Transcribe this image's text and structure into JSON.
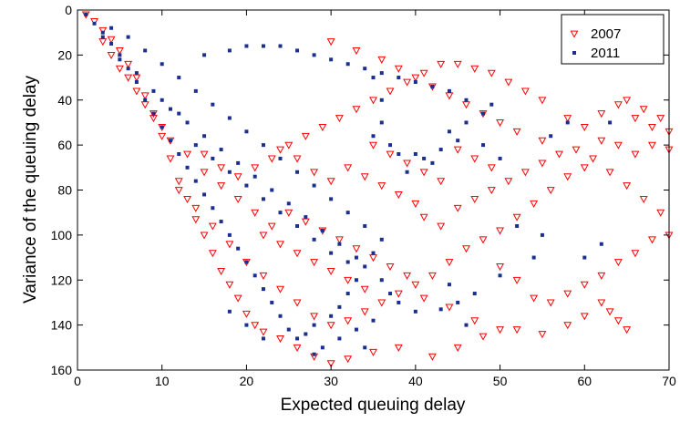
{
  "chart_data": {
    "type": "scatter",
    "xlabel": "Expected queuing delay",
    "ylabel": "Variance of the queuing delay",
    "xlim": [
      0,
      70
    ],
    "ylim": [
      0,
      160
    ],
    "y_axis_inverted": true,
    "x_ticks": [
      "0",
      "10",
      "20",
      "30",
      "40",
      "50",
      "60",
      "70"
    ],
    "y_ticks": [
      "0",
      "20",
      "40",
      "60",
      "80",
      "100",
      "120",
      "140",
      "160"
    ],
    "legend_position": "top-right",
    "grid": false,
    "series": [
      {
        "name": "2007",
        "marker": "triangle-down-open",
        "color": "#ff0000",
        "points": [
          [
            1,
            2
          ],
          [
            2,
            5
          ],
          [
            3,
            9
          ],
          [
            4,
            13
          ],
          [
            5,
            18
          ],
          [
            6,
            24
          ],
          [
            7,
            30
          ],
          [
            8,
            38
          ],
          [
            9,
            48
          ],
          [
            10,
            56
          ],
          [
            11,
            66
          ],
          [
            12,
            76
          ],
          [
            13,
            84
          ],
          [
            14,
            93
          ],
          [
            15,
            100
          ],
          [
            16,
            108
          ],
          [
            17,
            116
          ],
          [
            18,
            122
          ],
          [
            19,
            128
          ],
          [
            20,
            135
          ],
          [
            21,
            140
          ],
          [
            22,
            143
          ],
          [
            24,
            146
          ],
          [
            26,
            150
          ],
          [
            28,
            154
          ],
          [
            30,
            157
          ],
          [
            32,
            155
          ],
          [
            35,
            152
          ],
          [
            38,
            150
          ],
          [
            42,
            154
          ],
          [
            45,
            150
          ],
          [
            48,
            145
          ],
          [
            52,
            142
          ],
          [
            30,
            14
          ],
          [
            33,
            18
          ],
          [
            36,
            22
          ],
          [
            38,
            26
          ],
          [
            40,
            30
          ],
          [
            42,
            34
          ],
          [
            44,
            38
          ],
          [
            46,
            42
          ],
          [
            48,
            46
          ],
          [
            50,
            50
          ],
          [
            52,
            54
          ],
          [
            55,
            58
          ],
          [
            58,
            48
          ],
          [
            60,
            52
          ],
          [
            62,
            46
          ],
          [
            64,
            42
          ],
          [
            66,
            48
          ],
          [
            68,
            52
          ],
          [
            70,
            54
          ],
          [
            70,
            62
          ],
          [
            68,
            60
          ],
          [
            66,
            64
          ],
          [
            64,
            60
          ],
          [
            62,
            58
          ],
          [
            60,
            70
          ],
          [
            58,
            74
          ],
          [
            56,
            80
          ],
          [
            54,
            86
          ],
          [
            52,
            92
          ],
          [
            50,
            98
          ],
          [
            48,
            102
          ],
          [
            46,
            106
          ],
          [
            44,
            112
          ],
          [
            42,
            118
          ],
          [
            40,
            122
          ],
          [
            38,
            126
          ],
          [
            36,
            130
          ],
          [
            34,
            134
          ],
          [
            32,
            138
          ],
          [
            30,
            140
          ],
          [
            28,
            136
          ],
          [
            26,
            130
          ],
          [
            24,
            124
          ],
          [
            22,
            118
          ],
          [
            20,
            112
          ],
          [
            18,
            104
          ],
          [
            16,
            96
          ],
          [
            14,
            88
          ],
          [
            12,
            80
          ],
          [
            25,
            90
          ],
          [
            27,
            94
          ],
          [
            29,
            98
          ],
          [
            31,
            102
          ],
          [
            33,
            106
          ],
          [
            35,
            110
          ],
          [
            37,
            114
          ],
          [
            39,
            118
          ],
          [
            41,
            92
          ],
          [
            43,
            96
          ],
          [
            45,
            88
          ],
          [
            47,
            84
          ],
          [
            49,
            80
          ],
          [
            51,
            76
          ],
          [
            53,
            72
          ],
          [
            55,
            68
          ],
          [
            57,
            64
          ],
          [
            59,
            62
          ],
          [
            61,
            66
          ],
          [
            63,
            72
          ],
          [
            65,
            78
          ],
          [
            67,
            84
          ],
          [
            69,
            90
          ],
          [
            70,
            100
          ],
          [
            68,
            102
          ],
          [
            66,
            108
          ],
          [
            64,
            112
          ],
          [
            62,
            118
          ],
          [
            60,
            122
          ],
          [
            58,
            126
          ],
          [
            56,
            130
          ],
          [
            54,
            128
          ],
          [
            52,
            120
          ],
          [
            50,
            114
          ],
          [
            62,
            130
          ],
          [
            63,
            134
          ],
          [
            64,
            138
          ],
          [
            65,
            142
          ],
          [
            60,
            136
          ],
          [
            58,
            140
          ],
          [
            55,
            144
          ],
          [
            50,
            142
          ],
          [
            47,
            138
          ],
          [
            44,
            132
          ],
          [
            41,
            128
          ],
          [
            35,
            60
          ],
          [
            37,
            64
          ],
          [
            39,
            68
          ],
          [
            41,
            72
          ],
          [
            43,
            76
          ],
          [
            45,
            62
          ],
          [
            47,
            66
          ],
          [
            49,
            70
          ],
          [
            32,
            70
          ],
          [
            34,
            74
          ],
          [
            36,
            78
          ],
          [
            38,
            82
          ],
          [
            40,
            86
          ],
          [
            28,
            72
          ],
          [
            30,
            76
          ],
          [
            26,
            66
          ],
          [
            24,
            62
          ],
          [
            22,
            100
          ],
          [
            24,
            104
          ],
          [
            26,
            108
          ],
          [
            28,
            112
          ],
          [
            30,
            116
          ],
          [
            32,
            120
          ],
          [
            34,
            124
          ],
          [
            15,
            72
          ],
          [
            17,
            78
          ],
          [
            19,
            84
          ],
          [
            21,
            90
          ],
          [
            23,
            96
          ],
          [
            10,
            52
          ],
          [
            11,
            58
          ],
          [
            13,
            64
          ],
          [
            8,
            42
          ],
          [
            6,
            30
          ],
          [
            5,
            26
          ],
          [
            7,
            36
          ],
          [
            9,
            46
          ],
          [
            3,
            14
          ],
          [
            4,
            20
          ],
          [
            65,
            40
          ],
          [
            67,
            44
          ],
          [
            69,
            48
          ],
          [
            55,
            40
          ],
          [
            53,
            36
          ],
          [
            51,
            32
          ],
          [
            49,
            28
          ],
          [
            47,
            26
          ],
          [
            45,
            24
          ],
          [
            43,
            24
          ],
          [
            41,
            28
          ],
          [
            39,
            32
          ],
          [
            37,
            36
          ],
          [
            35,
            40
          ],
          [
            33,
            44
          ],
          [
            31,
            48
          ],
          [
            29,
            52
          ],
          [
            27,
            56
          ],
          [
            25,
            60
          ],
          [
            23,
            66
          ],
          [
            21,
            70
          ],
          [
            19,
            74
          ],
          [
            17,
            70
          ],
          [
            15,
            64
          ]
        ]
      },
      {
        "name": "2011",
        "marker": "square",
        "color": "#1a2f8f",
        "points": [
          [
            1,
            2
          ],
          [
            2,
            6
          ],
          [
            3,
            10
          ],
          [
            4,
            15
          ],
          [
            5,
            20
          ],
          [
            6,
            26
          ],
          [
            7,
            32
          ],
          [
            8,
            40
          ],
          [
            9,
            46
          ],
          [
            10,
            52
          ],
          [
            11,
            58
          ],
          [
            12,
            64
          ],
          [
            13,
            70
          ],
          [
            14,
            76
          ],
          [
            15,
            82
          ],
          [
            16,
            88
          ],
          [
            17,
            94
          ],
          [
            18,
            100
          ],
          [
            19,
            106
          ],
          [
            20,
            112
          ],
          [
            21,
            118
          ],
          [
            22,
            124
          ],
          [
            23,
            130
          ],
          [
            24,
            136
          ],
          [
            25,
            142
          ],
          [
            22,
            146
          ],
          [
            20,
            140
          ],
          [
            18,
            134
          ],
          [
            26,
            146
          ],
          [
            27,
            144
          ],
          [
            28,
            140
          ],
          [
            30,
            136
          ],
          [
            31,
            132
          ],
          [
            32,
            126
          ],
          [
            33,
            120
          ],
          [
            34,
            114
          ],
          [
            35,
            108
          ],
          [
            36,
            102
          ],
          [
            34,
            96
          ],
          [
            32,
            90
          ],
          [
            30,
            84
          ],
          [
            28,
            78
          ],
          [
            26,
            72
          ],
          [
            24,
            66
          ],
          [
            22,
            60
          ],
          [
            20,
            54
          ],
          [
            18,
            48
          ],
          [
            16,
            42
          ],
          [
            14,
            36
          ],
          [
            12,
            30
          ],
          [
            10,
            24
          ],
          [
            8,
            18
          ],
          [
            6,
            12
          ],
          [
            4,
            8
          ],
          [
            15,
            20
          ],
          [
            18,
            18
          ],
          [
            20,
            16
          ],
          [
            22,
            16
          ],
          [
            24,
            16
          ],
          [
            26,
            18
          ],
          [
            28,
            20
          ],
          [
            30,
            22
          ],
          [
            32,
            24
          ],
          [
            34,
            26
          ],
          [
            35,
            30
          ],
          [
            36,
            40
          ],
          [
            36,
            50
          ],
          [
            35,
            56
          ],
          [
            37,
            60
          ],
          [
            38,
            64
          ],
          [
            40,
            64
          ],
          [
            41,
            66
          ],
          [
            42,
            68
          ],
          [
            39,
            72
          ],
          [
            43,
            62
          ],
          [
            45,
            58
          ],
          [
            44,
            54
          ],
          [
            46,
            50
          ],
          [
            48,
            46
          ],
          [
            49,
            42
          ],
          [
            36,
            120
          ],
          [
            37,
            126
          ],
          [
            38,
            130
          ],
          [
            40,
            134
          ],
          [
            35,
            138
          ],
          [
            33,
            142
          ],
          [
            31,
            146
          ],
          [
            29,
            150
          ],
          [
            28,
            153
          ],
          [
            34,
            150
          ],
          [
            48,
            60
          ],
          [
            50,
            66
          ],
          [
            52,
            96
          ],
          [
            54,
            110
          ],
          [
            50,
            118
          ],
          [
            47,
            126
          ],
          [
            45,
            130
          ],
          [
            43,
            133
          ],
          [
            46,
            40
          ],
          [
            44,
            36
          ],
          [
            42,
            34
          ],
          [
            40,
            32
          ],
          [
            38,
            30
          ],
          [
            36,
            28
          ],
          [
            14,
            60
          ],
          [
            16,
            66
          ],
          [
            18,
            72
          ],
          [
            20,
            78
          ],
          [
            22,
            84
          ],
          [
            24,
            90
          ],
          [
            26,
            96
          ],
          [
            28,
            102
          ],
          [
            30,
            108
          ],
          [
            32,
            112
          ],
          [
            11,
            44
          ],
          [
            13,
            50
          ],
          [
            15,
            56
          ],
          [
            17,
            62
          ],
          [
            19,
            68
          ],
          [
            21,
            74
          ],
          [
            23,
            80
          ],
          [
            25,
            86
          ],
          [
            27,
            92
          ],
          [
            29,
            98
          ],
          [
            31,
            104
          ],
          [
            33,
            110
          ],
          [
            10,
            40
          ],
          [
            12,
            46
          ],
          [
            9,
            36
          ],
          [
            7,
            28
          ],
          [
            5,
            22
          ],
          [
            3,
            12
          ],
          [
            58,
            50
          ],
          [
            63,
            50
          ],
          [
            56,
            56
          ],
          [
            55,
            100
          ],
          [
            60,
            110
          ],
          [
            62,
            104
          ],
          [
            46,
            140
          ],
          [
            44,
            122
          ]
        ]
      }
    ]
  }
}
